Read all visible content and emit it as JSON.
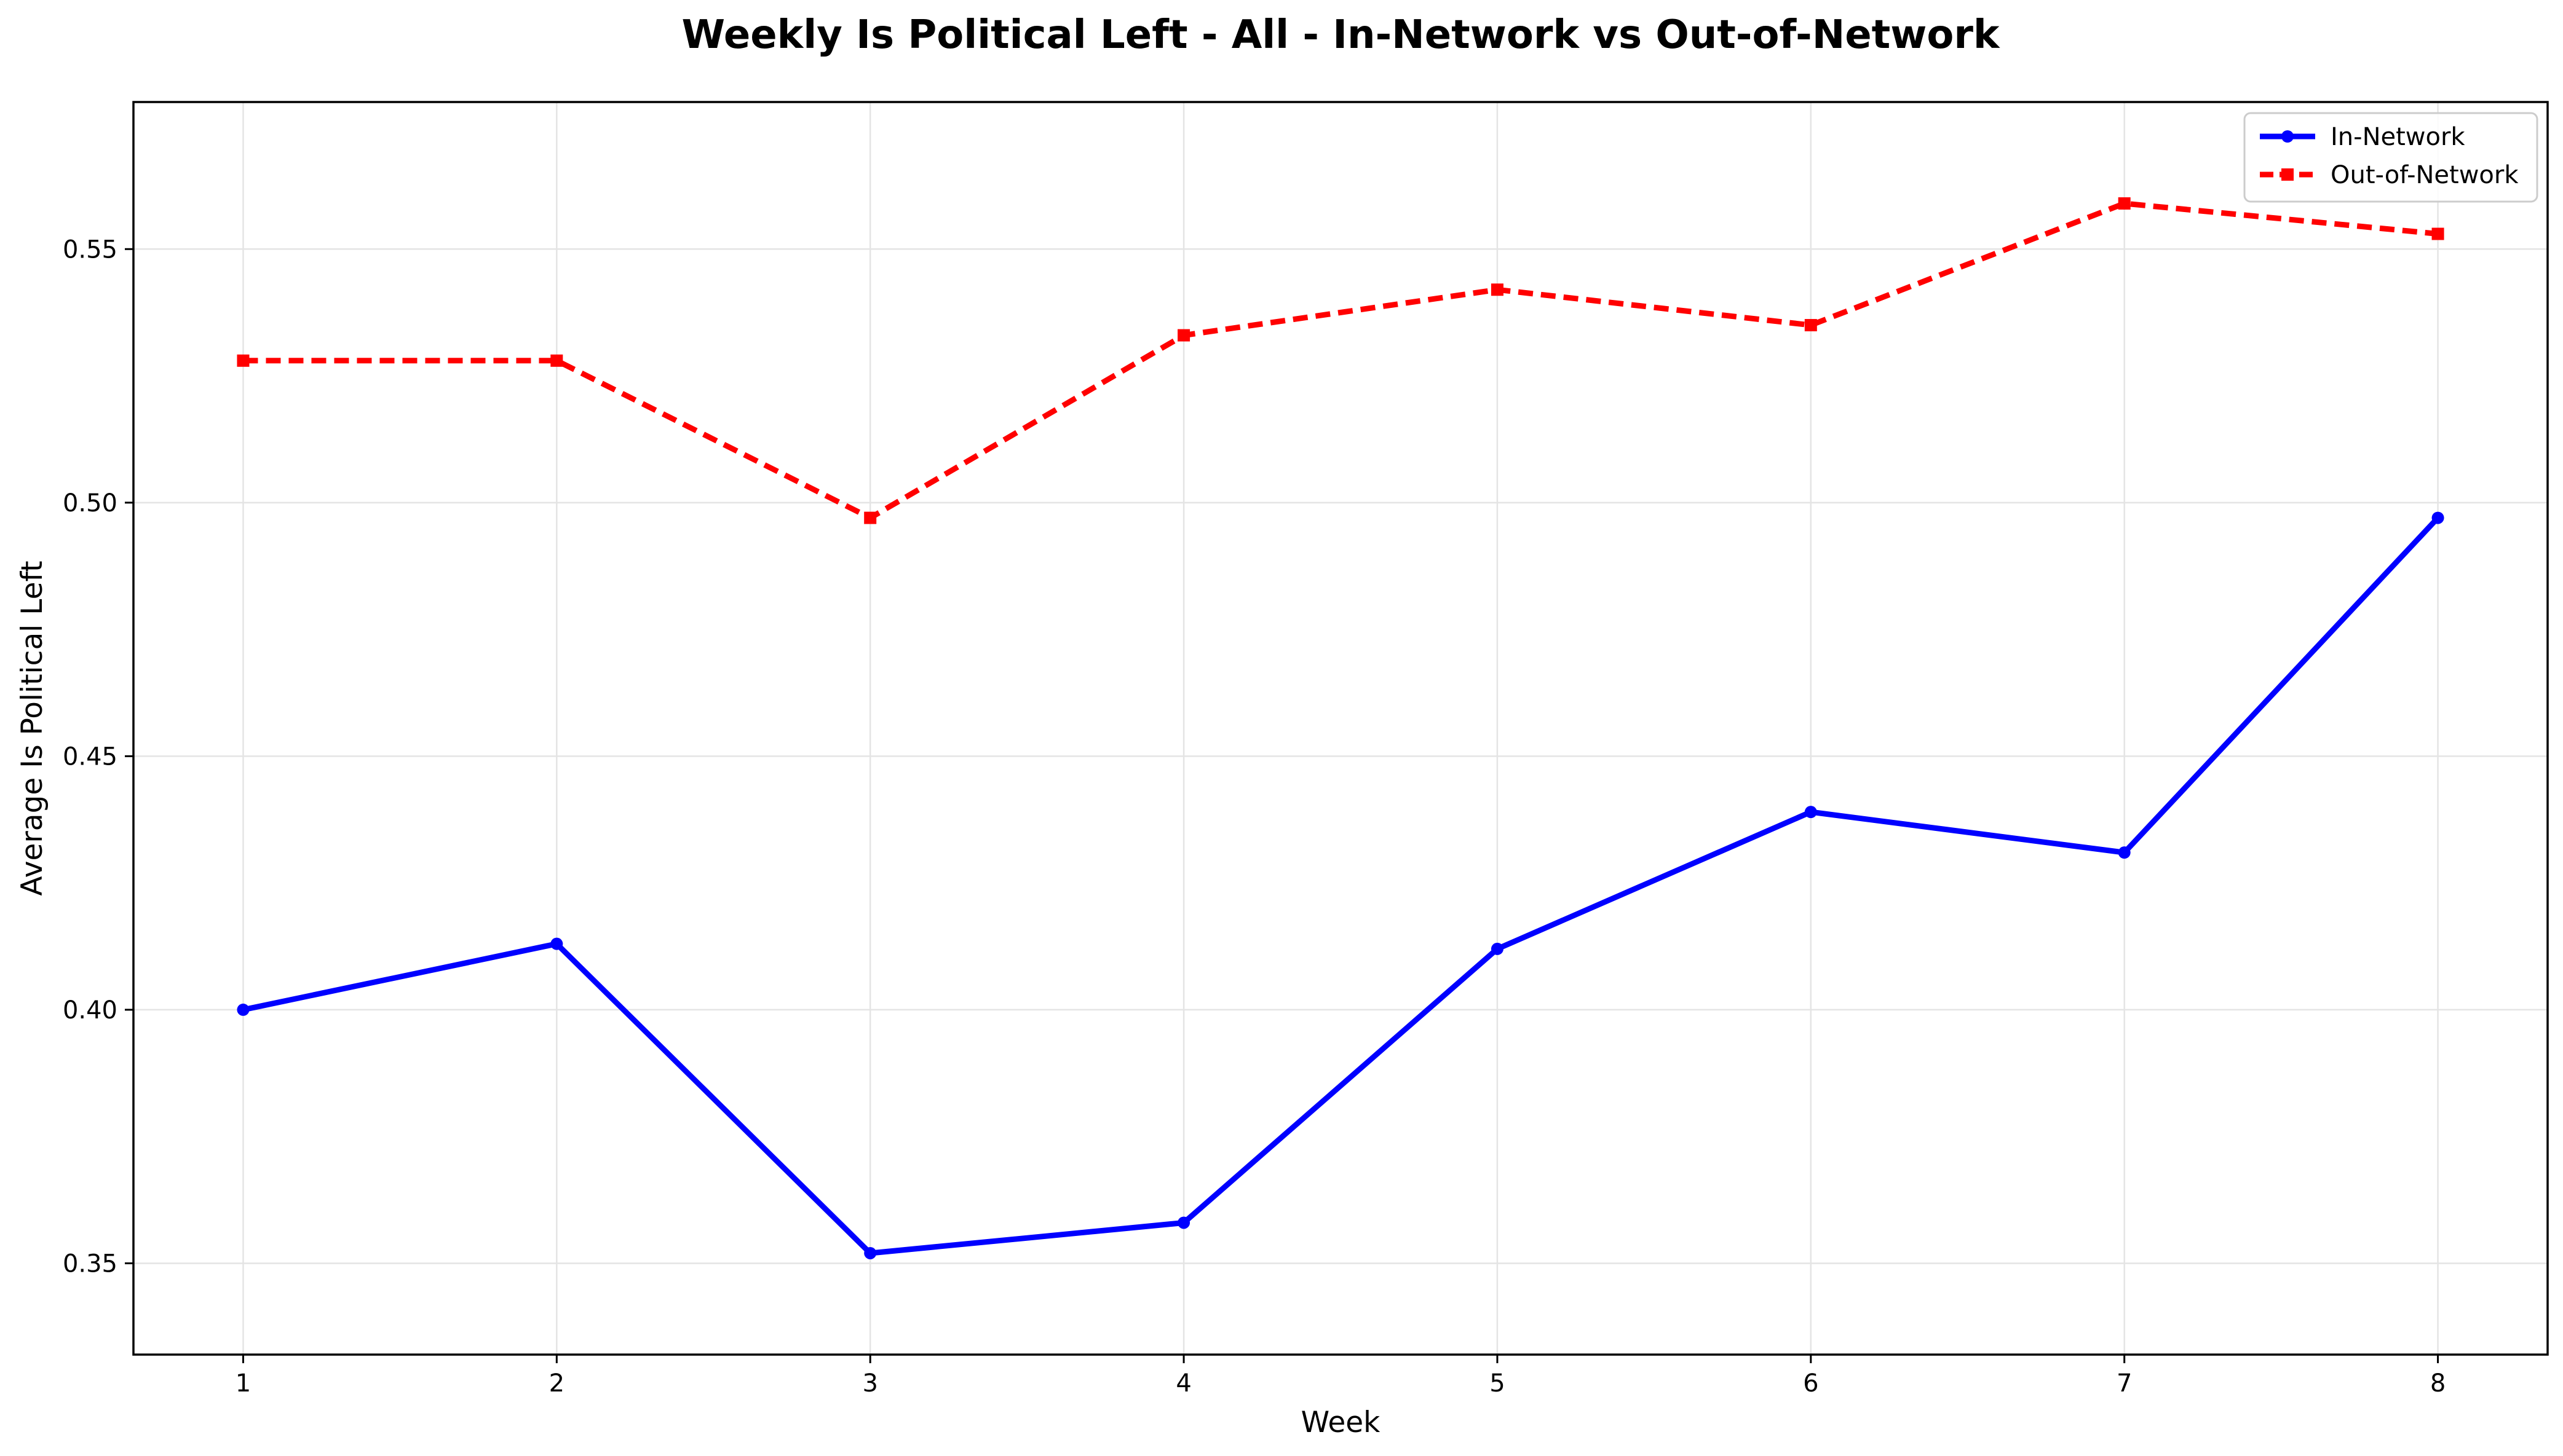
{
  "chart_data": {
    "type": "line",
    "title": "Weekly Is Political Left - All - In-Network vs Out-of-Network",
    "xlabel": "Week",
    "ylabel": "Average Is Political Left",
    "x": [
      1,
      2,
      3,
      4,
      5,
      6,
      7,
      8
    ],
    "x_tick_labels": [
      "1",
      "2",
      "3",
      "4",
      "5",
      "6",
      "7",
      "8"
    ],
    "xlim": [
      0.65,
      8.35
    ],
    "ylim": [
      0.332,
      0.579
    ],
    "y_ticks": [
      0.35,
      0.4,
      0.45,
      0.5,
      0.55
    ],
    "y_tick_labels": [
      "0.35",
      "0.40",
      "0.45",
      "0.50",
      "0.55"
    ],
    "grid": true,
    "legend_position": "top-right",
    "series": [
      {
        "name": "In-Network",
        "color": "#0000ff",
        "line_style": "solid",
        "marker": "circle",
        "values": [
          0.4,
          0.413,
          0.352,
          0.358,
          0.412,
          0.439,
          0.431,
          0.497
        ]
      },
      {
        "name": "Out-of-Network",
        "color": "#ff0000",
        "line_style": "dashed",
        "marker": "square",
        "values": [
          0.528,
          0.528,
          0.497,
          0.533,
          0.542,
          0.535,
          0.559,
          0.553
        ]
      }
    ]
  }
}
